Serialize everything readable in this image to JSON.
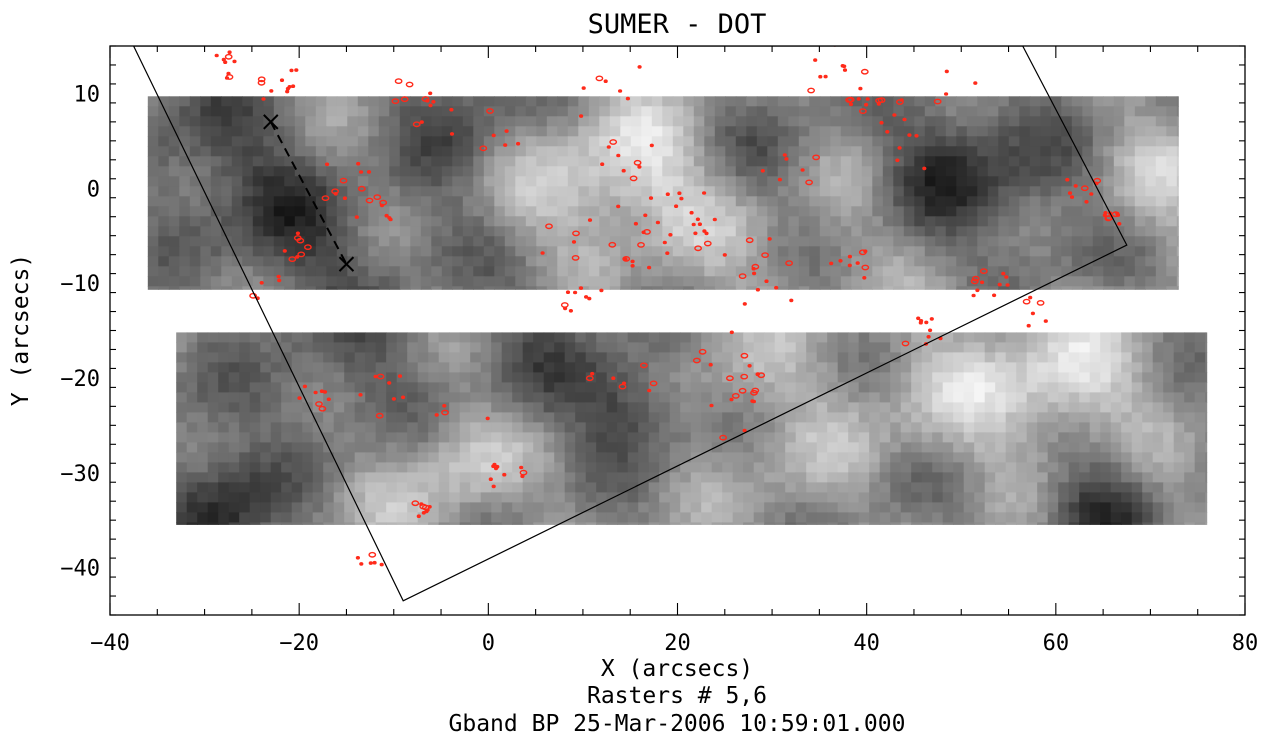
{
  "chart_data": {
    "type": "heatmap",
    "title": "SUMER - DOT",
    "xlabel": "X (arcsecs)",
    "ylabel": "Y (arcsecs)",
    "subtitle_lines": [
      "Rasters # 5,6",
      "Gband BP 25-Mar-2006 10:59:01.000"
    ],
    "xlim": [
      -40,
      80
    ],
    "ylim": [
      -45,
      15
    ],
    "x_ticks": [
      -40,
      -20,
      0,
      20,
      40,
      60,
      80
    ],
    "x_tick_labels": [
      "−40",
      "−20",
      "0",
      "20",
      "40",
      "60",
      "80"
    ],
    "y_ticks": [
      -40,
      -30,
      -20,
      -10,
      0,
      10
    ],
    "y_tick_labels": [
      "−40",
      "−30",
      "−20",
      "−10",
      "0",
      "10"
    ],
    "grid": false,
    "rasters": [
      {
        "x_range": [
          -36,
          73
        ],
        "y_range": [
          -10.7,
          9.7
        ]
      },
      {
        "x_range": [
          -33,
          76
        ],
        "y_range": [
          -35.5,
          -15.2
        ]
      }
    ],
    "fov_polygon": [
      [
        -37.5,
        15
      ],
      [
        56.5,
        15
      ],
      [
        67.5,
        -6
      ],
      [
        -9,
        -43.5
      ]
    ],
    "slit_markers": [
      [
        -23,
        7
      ],
      [
        -15,
        -8
      ]
    ],
    "bright_point_color": "#ff2a1a",
    "raster_colormap": "grayscale"
  }
}
